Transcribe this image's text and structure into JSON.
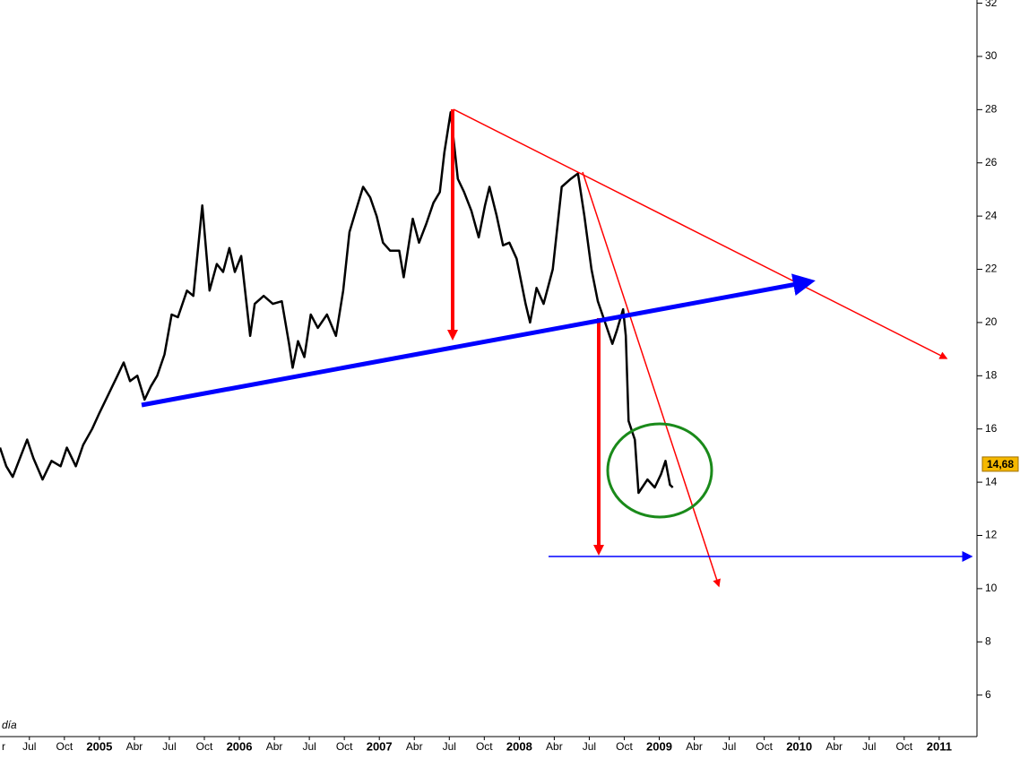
{
  "chart_data": {
    "type": "line",
    "series": [
      {
        "color": "#000000",
        "x": [
          2004.29,
          2004.335,
          2004.381,
          2004.432,
          2004.484,
          2004.529,
          2004.594,
          2004.658,
          2004.723,
          2004.768,
          2004.832,
          2004.884,
          2004.948,
          2005.0,
          2005.065,
          2005.129,
          2005.174,
          2005.219,
          2005.271,
          2005.323,
          2005.368,
          2005.413,
          2005.465,
          2005.516,
          2005.561,
          2005.626,
          2005.671,
          2005.735,
          2005.787,
          2005.839,
          2005.884,
          2005.929,
          2005.968,
          2006.013,
          2006.077,
          2006.11,
          2006.174,
          2006.239,
          2006.303,
          2006.355,
          2006.381,
          2006.419,
          2006.465,
          2006.51,
          2006.561,
          2006.626,
          2006.69,
          2006.742,
          2006.787,
          2006.832,
          2006.884,
          2006.935,
          2006.981,
          2007.026,
          2007.077,
          2007.142,
          2007.174,
          2007.239,
          2007.284,
          2007.335,
          2007.387,
          2007.432,
          2007.465,
          2007.51,
          2007.561,
          2007.606,
          2007.658,
          2007.71,
          2007.755,
          2007.787,
          2007.839,
          2007.884,
          2007.929,
          2007.981,
          2008.045,
          2008.077,
          2008.123,
          2008.174,
          2008.239,
          2008.303,
          2008.368,
          2008.419,
          2008.465,
          2008.516,
          2008.561,
          2008.613,
          2008.665,
          2008.697,
          2008.742,
          2008.761,
          2008.781,
          2008.826,
          2008.852,
          2008.916,
          2008.968,
          2009.013,
          2009.045,
          2009.077,
          2009.097
        ],
        "values": [
          15.3,
          14.6,
          14.2,
          14.9,
          15.6,
          14.9,
          14.1,
          14.8,
          14.6,
          15.3,
          14.6,
          15.4,
          16.0,
          16.6,
          17.3,
          18.0,
          18.5,
          17.8,
          18.0,
          17.1,
          17.6,
          18.0,
          18.8,
          20.3,
          20.2,
          21.2,
          21.0,
          24.4,
          21.2,
          22.2,
          21.9,
          22.8,
          21.9,
          22.5,
          19.5,
          20.7,
          21.0,
          20.7,
          20.8,
          19.2,
          18.3,
          19.3,
          18.7,
          20.3,
          19.8,
          20.3,
          19.5,
          21.2,
          23.4,
          24.2,
          25.1,
          24.7,
          24.0,
          23.0,
          22.7,
          22.7,
          21.7,
          23.9,
          23.0,
          23.7,
          24.5,
          24.9,
          26.4,
          27.9,
          25.4,
          24.9,
          24.2,
          23.2,
          24.4,
          25.1,
          24.0,
          22.9,
          23.0,
          22.4,
          20.7,
          20.0,
          21.3,
          20.7,
          22.0,
          25.1,
          25.4,
          25.6,
          24.0,
          22.0,
          20.8,
          20.0,
          19.2,
          19.7,
          20.5,
          19.5,
          16.3,
          15.6,
          13.6,
          14.1,
          13.8,
          14.3,
          14.8,
          13.9,
          13.8
        ]
      }
    ],
    "last_value": 14.68,
    "last_value_label": "14,68",
    "note": "día",
    "xlim": [
      2004.29,
      2011.27
    ],
    "xticks": [
      {
        "value": 2004.25,
        "label": "r"
      },
      {
        "value": 2004.5,
        "label": "Jul"
      },
      {
        "value": 2004.75,
        "label": "Oct"
      },
      2005,
      {
        "value": 2005.25,
        "label": "Abr"
      },
      {
        "value": 2005.5,
        "label": "Jul"
      },
      {
        "value": 2005.75,
        "label": "Oct"
      },
      2006,
      {
        "value": 2006.25,
        "label": "Abr"
      },
      {
        "value": 2006.5,
        "label": "Jul"
      },
      {
        "value": 2006.75,
        "label": "Oct"
      },
      2007,
      {
        "value": 2007.25,
        "label": "Abr"
      },
      {
        "value": 2007.5,
        "label": "Jul"
      },
      {
        "value": 2007.75,
        "label": "Oct"
      },
      2008,
      {
        "value": 2008.25,
        "label": "Abr"
      },
      {
        "value": 2008.5,
        "label": "Jul"
      },
      {
        "value": 2008.75,
        "label": "Oct"
      },
      2009,
      {
        "value": 2009.25,
        "label": "Abr"
      },
      {
        "value": 2009.5,
        "label": "Jul"
      },
      {
        "value": 2009.75,
        "label": "Oct"
      },
      2010,
      {
        "value": 2010.25,
        "label": "Abr"
      },
      {
        "value": 2010.5,
        "label": "Jul"
      },
      {
        "value": 2010.75,
        "label": "Oct"
      },
      2011
    ],
    "ylim": [
      4.44,
      32.12
    ],
    "yticks": [
      6,
      8,
      10,
      12,
      14,
      16,
      18,
      20,
      22,
      24,
      26,
      28,
      30,
      32
    ]
  }
}
